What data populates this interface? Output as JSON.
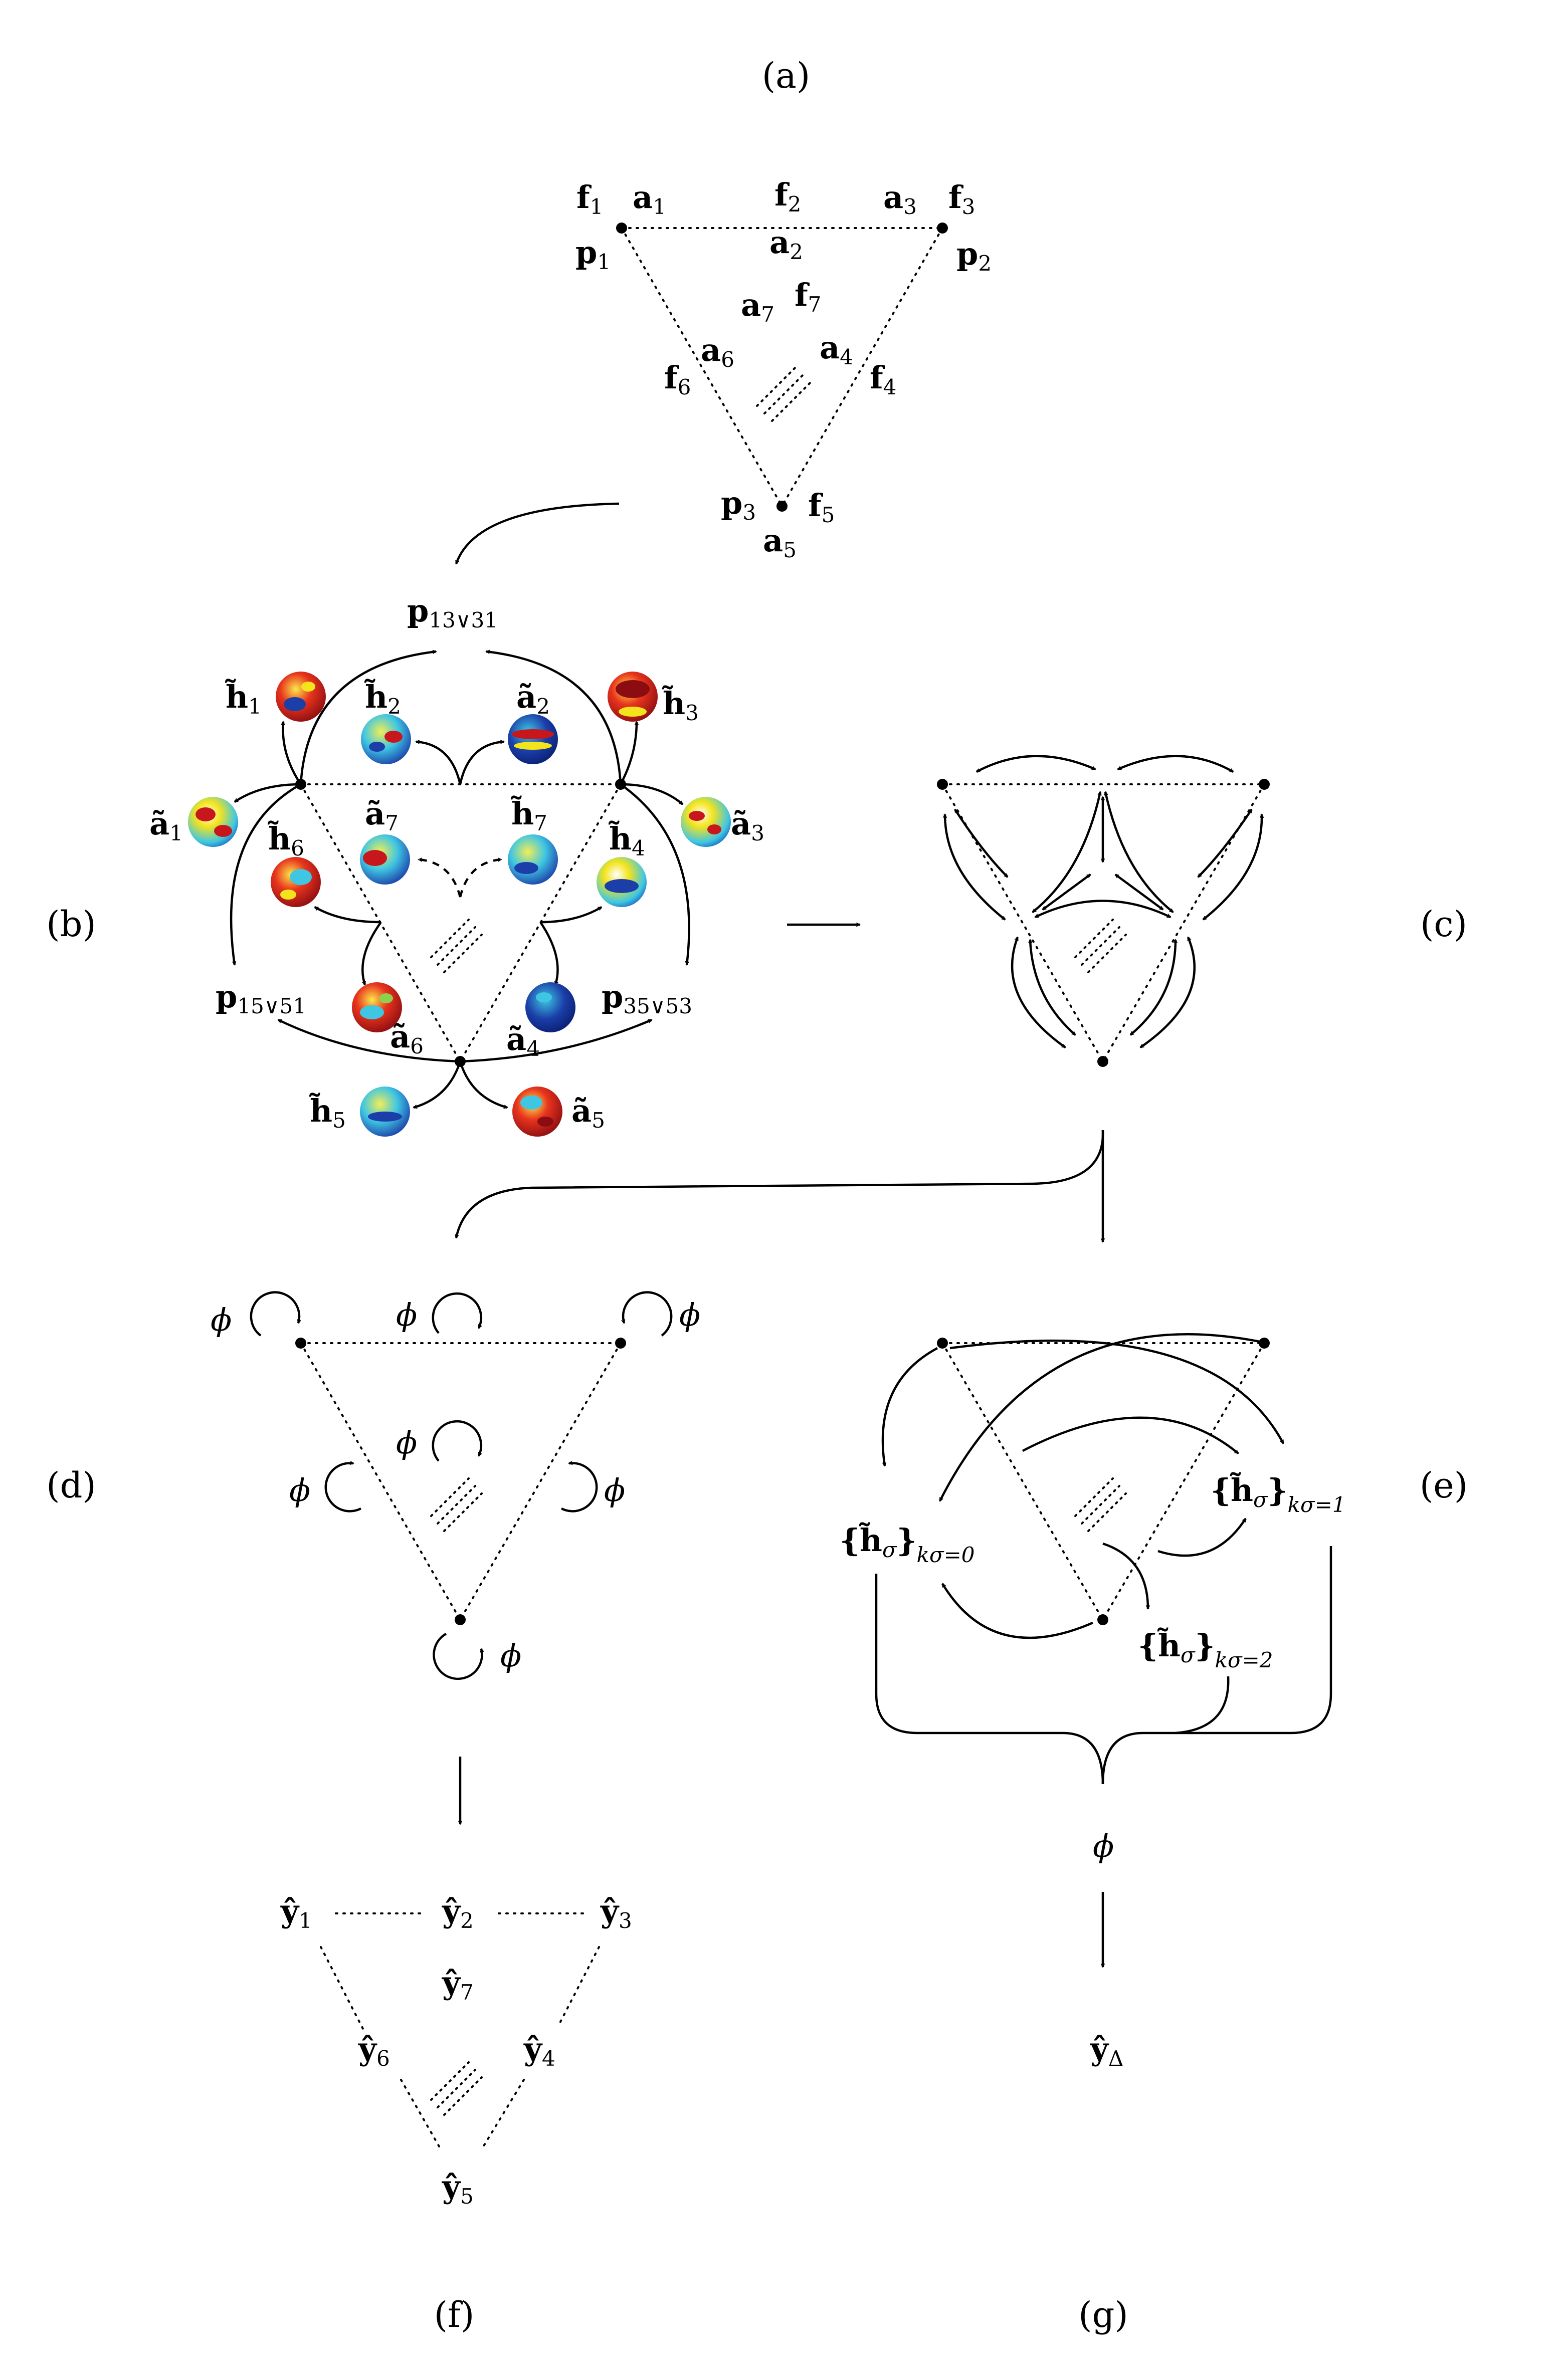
{
  "panels": {
    "a": "(a)",
    "b": "(b)",
    "c": "(c)",
    "d": "(d)",
    "e": "(e)",
    "f": "(f)",
    "g": "(g)"
  },
  "panel_a": {
    "f1": "f",
    "f1s": "1",
    "a1": "a",
    "a1s": "1",
    "f2": "f",
    "f2s": "2",
    "a3": "a",
    "a3s": "3",
    "f3": "f",
    "f3s": "3",
    "p1": "p",
    "p1s": "1",
    "a2": "a",
    "a2s": "2",
    "p2": "p",
    "p2s": "2",
    "a7": "a",
    "a7s": "7",
    "f7": "f",
    "f7s": "7",
    "a6": "a",
    "a6s": "6",
    "a4": "a",
    "a4s": "4",
    "f6": "f",
    "f6s": "6",
    "f4": "f",
    "f4s": "4",
    "p3": "p",
    "p3s": "3",
    "f5": "f",
    "f5s": "5",
    "a5": "a",
    "a5s": "5"
  },
  "panel_b": {
    "p_top": "p",
    "p_top_s": "13∨31",
    "p_left": "p",
    "p_left_s": "15∨51",
    "p_right": "p",
    "p_right_s": "35∨53",
    "h1": "h̃",
    "h1s": "1",
    "h2": "h̃",
    "h2s": "2",
    "a2": "ã",
    "a2s": "2",
    "h3": "h̃",
    "h3s": "3",
    "a1": "ã",
    "a1s": "1",
    "h6": "h̃",
    "h6s": "6",
    "a7": "ã",
    "a7s": "7",
    "h7": "h̃",
    "h7s": "7",
    "h4": "h̃",
    "h4s": "4",
    "a3": "ã",
    "a3s": "3",
    "a6": "ã",
    "a6s": "6",
    "a4": "ã",
    "a4s": "4",
    "h5": "h̃",
    "h5s": "5",
    "a5": "ã",
    "a5s": "5"
  },
  "panel_d": {
    "phi": "ϕ"
  },
  "panel_e": {
    "h0": "{h̃",
    "h0_sigma": "σ",
    "h0_close": "}",
    "h0_sub": "kσ=0",
    "h1": "{h̃",
    "h1_sigma": "σ",
    "h1_close": "}",
    "h1_sub": "kσ=1",
    "h2": "{h̃",
    "h2_sigma": "σ",
    "h2_close": "}",
    "h2_sub": "kσ=2",
    "phi": "ϕ"
  },
  "panel_f": {
    "y1": "ŷ",
    "y1s": "1",
    "y2": "ŷ",
    "y2s": "2",
    "y3": "ŷ",
    "y3s": "3",
    "y7": "ŷ",
    "y7s": "7",
    "y6": "ŷ",
    "y6s": "6",
    "y4": "ŷ",
    "y4s": "4",
    "y5": "ŷ",
    "y5s": "5"
  },
  "panel_g": {
    "y": "ŷ",
    "ys": "Δ"
  },
  "sphere_colors": {
    "red": "#c8161d",
    "yellow": "#f4e41c",
    "cyan": "#3fc6e3",
    "blue": "#1b3ea8",
    "navy": "#0b1f73",
    "green": "#8fd14f"
  }
}
